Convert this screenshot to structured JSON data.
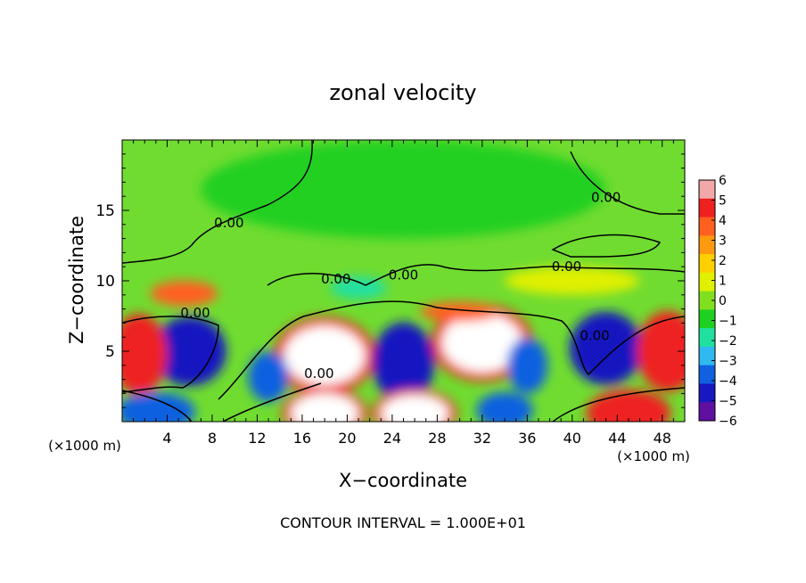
{
  "chart_data": {
    "type": "heatmap",
    "title": "zonal velocity",
    "xlabel": "X−coordinate",
    "ylabel": "Z−coordinate",
    "x_unit_left": "(×1000 m)",
    "x_unit_right": "(×1000 m)",
    "footer": "CONTOUR INTERVAL = 1.000E+01",
    "xlim": [
      0,
      50
    ],
    "ylim": [
      0,
      20
    ],
    "x_ticks": [
      "4",
      "8",
      "12",
      "16",
      "20",
      "24",
      "28",
      "32",
      "36",
      "40",
      "44",
      "48"
    ],
    "x_tick_values": [
      4,
      8,
      12,
      16,
      20,
      24,
      28,
      32,
      36,
      40,
      44,
      48
    ],
    "y_ticks": [
      "5",
      "10",
      "15"
    ],
    "y_tick_values": [
      5,
      10,
      15
    ],
    "colorbar": {
      "labels": [
        "6",
        "5",
        "4",
        "3",
        "2",
        "1",
        "0",
        "−1",
        "−2",
        "−3",
        "−4",
        "−5",
        "−6"
      ],
      "colors": [
        "#f2a8a8",
        "#ee2020",
        "#ff6020",
        "#ff9a10",
        "#ffd000",
        "#e0f000",
        "#80e020",
        "#20d020",
        "#20e0a0",
        "#30b8f0",
        "#1060e0",
        "#1818c0",
        "#6010a0"
      ]
    },
    "contour_labels": [
      {
        "text": "0.00",
        "x": 9.5,
        "z": 13.8
      },
      {
        "text": "0.00",
        "x": 19,
        "z": 9.8
      },
      {
        "text": "0.00",
        "x": 25,
        "z": 10.1
      },
      {
        "text": "0.00",
        "x": 43,
        "z": 15.6
      },
      {
        "text": "0.00",
        "x": 39.5,
        "z": 10.7
      },
      {
        "text": "0.00",
        "x": 6.5,
        "z": 7.4
      },
      {
        "text": "0.00",
        "x": 17.5,
        "z": 3.1
      },
      {
        "text": "0.00",
        "x": 42,
        "z": 5.8
      }
    ],
    "features": [
      {
        "x": 18,
        "z": 4.7,
        "rx": 3.6,
        "rz": 2.1,
        "value": 6
      },
      {
        "x": 32,
        "z": 5.6,
        "rx": 3.6,
        "rz": 2.1,
        "value": 6
      },
      {
        "x": 43,
        "z": 5.2,
        "rx": 2.6,
        "rz": 2.0,
        "value": -5
      },
      {
        "x": 6,
        "z": 5.0,
        "rx": 2.6,
        "rz": 1.9,
        "value": -5
      },
      {
        "x": 25,
        "z": 4.2,
        "rx": 2.2,
        "rz": 2.2,
        "value": -5
      },
      {
        "x": 36,
        "z": 4.0,
        "rx": 1.8,
        "rz": 2.0,
        "value": -4
      },
      {
        "x": 1.5,
        "z": 4.8,
        "rx": 2.0,
        "rz": 2.2,
        "value": 5
      },
      {
        "x": 48.5,
        "z": 5.0,
        "rx": 2.2,
        "rz": 2.2,
        "value": 5
      },
      {
        "x": 13,
        "z": 3.2,
        "rx": 1.8,
        "rz": 1.8,
        "value": -4
      },
      {
        "x": 18,
        "z": 0.6,
        "rx": 3.0,
        "rz": 1.4,
        "value": 6
      },
      {
        "x": 26,
        "z": 0.6,
        "rx": 3.0,
        "rz": 1.3,
        "value": 6
      },
      {
        "x": 45,
        "z": 0.6,
        "rx": 3.0,
        "rz": 1.3,
        "value": 5
      },
      {
        "x": 3,
        "z": 0.7,
        "rx": 3.5,
        "rz": 1.4,
        "value": -4
      },
      {
        "x": 34,
        "z": 0.8,
        "rx": 2.5,
        "rz": 1.3,
        "value": -4
      },
      {
        "x": 5.5,
        "z": 9.1,
        "rx": 3.0,
        "rz": 0.9,
        "value": 4
      },
      {
        "x": 30,
        "z": 7.8,
        "rx": 3.5,
        "rz": 0.7,
        "value": 4
      },
      {
        "x": 21,
        "z": 9.5,
        "rx": 2.5,
        "rz": 0.8,
        "value": -2
      },
      {
        "x": 40,
        "z": 10.0,
        "rx": 6,
        "rz": 1.0,
        "value": 1
      },
      {
        "x": 25,
        "z": 16.5,
        "rx": 18,
        "rz": 3.5,
        "value": -1
      }
    ]
  }
}
